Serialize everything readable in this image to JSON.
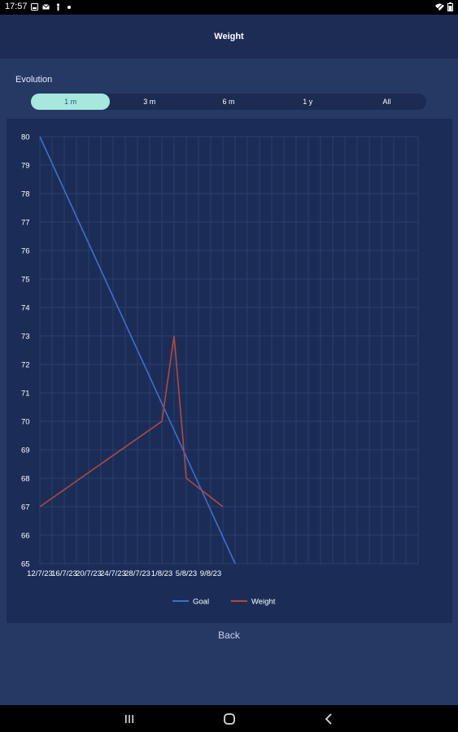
{
  "status_bar": {
    "time": "17:57"
  },
  "header": {
    "title": "Weight"
  },
  "section": {
    "label": "Evolution"
  },
  "range_tabs": [
    {
      "label": "1 m",
      "active": true
    },
    {
      "label": "3 m",
      "active": false
    },
    {
      "label": "6 m",
      "active": false
    },
    {
      "label": "1 y",
      "active": false
    },
    {
      "label": "All",
      "active": false
    }
  ],
  "chart_data": {
    "type": "line",
    "x_tick_labels": [
      "12/7/23",
      "16/7/23",
      "20/7/23",
      "24/7/23",
      "28/7/23",
      "1/8/23",
      "5/8/23",
      "9/8/23"
    ],
    "ylim": [
      65,
      80
    ],
    "y_ticks": [
      80,
      79,
      78,
      77,
      76,
      75,
      74,
      73,
      72,
      71,
      70,
      69,
      68,
      67,
      66,
      65
    ],
    "grid": true,
    "legend_position": "bottom-center",
    "series": [
      {
        "name": "Goal",
        "color": "#3f6ed0",
        "points": [
          {
            "x": "12/7/23",
            "y": 80
          },
          {
            "x": "13/8/23",
            "y": 65
          }
        ]
      },
      {
        "name": "Weight",
        "color": "#b3483c",
        "points": [
          {
            "x": "12/7/23",
            "y": 67
          },
          {
            "x": "1/8/23",
            "y": 70
          },
          {
            "x": "3/8/23",
            "y": 73
          },
          {
            "x": "5/8/23",
            "y": 68
          },
          {
            "x": "11/8/23",
            "y": 67
          }
        ]
      }
    ]
  },
  "footer": {
    "back_label": "Back"
  },
  "colors": {
    "background": "#263965",
    "header": "#1c2c54",
    "chart_panel": "#1b2d57",
    "active_tab": "#a6e8dc",
    "grid": "#2a3f6d"
  }
}
